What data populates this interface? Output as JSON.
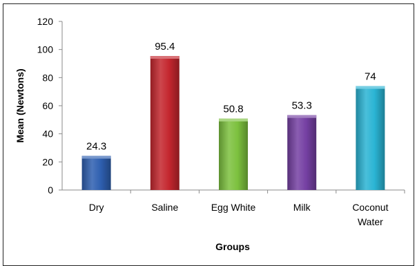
{
  "chart_data": {
    "type": "bar",
    "categories": [
      "Dry",
      "Saline",
      "Egg White",
      "Milk",
      "Coconut Water"
    ],
    "category_label_lines": [
      [
        "Dry"
      ],
      [
        "Saline"
      ],
      [
        "Egg White"
      ],
      [
        "Milk"
      ],
      [
        "Coconut",
        "Water"
      ]
    ],
    "values": [
      24.3,
      95.4,
      50.8,
      53.3,
      74
    ],
    "data_labels": [
      "24.3",
      "95.4",
      "50.8",
      "53.3",
      "74"
    ],
    "colors": [
      "#2e5fb0",
      "#c4262e",
      "#7cc13e",
      "#7540a3",
      "#2ab4d4"
    ],
    "title": "",
    "xlabel": "Groups",
    "ylabel": "Mean (Newtons)",
    "ylim": [
      0,
      120
    ],
    "yticks": [
      0,
      20,
      40,
      60,
      80,
      100,
      120
    ],
    "grid": false,
    "legend": "none"
  }
}
